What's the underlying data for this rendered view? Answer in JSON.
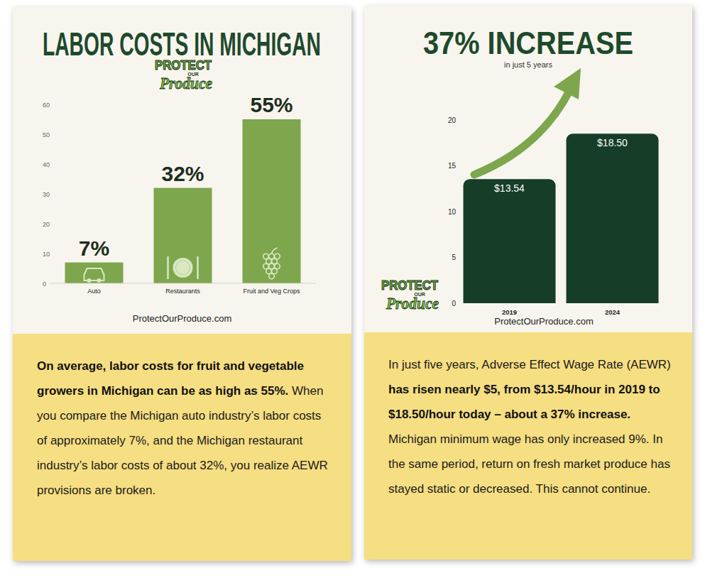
{
  "chart_data": [
    {
      "type": "bar",
      "title": "LABOR COSTS IN MICHIGAN",
      "logo": [
        "PROTECT",
        "OUR",
        "Produce"
      ],
      "categories": [
        "Auto",
        "Restaurants",
        "Fruit and Veg Crops"
      ],
      "values": [
        7,
        32,
        55
      ],
      "value_labels": [
        "7%",
        "32%",
        "55%"
      ],
      "color": "#7da64d",
      "ylim": [
        0,
        60
      ],
      "yticks": [
        0,
        10,
        20,
        30,
        40,
        50,
        60
      ],
      "grid": false,
      "data_labels": true,
      "source": "ProtectOurProduce.com",
      "annotations": [
        "On average, labor costs for fruit and vegetable growers in Michigan can be as high as 55%.",
        "When you compare the Michigan auto industry’s labor costs of approximately 7%, and the Michigan restaurant industry’s labor costs of about 32%, you realize AEWR provisions are broken."
      ]
    },
    {
      "type": "bar",
      "title": "37% INCREASE",
      "subtitle": "in just 5 years",
      "logo": [
        "PROTECT",
        "OUR",
        "Produce"
      ],
      "categories": [
        "2019",
        "2024"
      ],
      "values": [
        13.54,
        18.5
      ],
      "value_labels": [
        "$13.54",
        "$18.50"
      ],
      "color": "#163d27",
      "ylim": [
        0,
        20
      ],
      "yticks": [
        0,
        5,
        10,
        15,
        20
      ],
      "grid": false,
      "data_labels": true,
      "source": "ProtectOurProduce.com",
      "annotations": [
        "In just five years, Adverse Effect Wage Rate (AEWR)",
        "has risen nearly $5, from $13.54/hour in 2019 to $18.50/hour today – about a 37% increase.",
        "Michigan minimum wage has only increased 9%. In the same period, return on fresh market produce has stayed static or decreased. This cannot continue."
      ]
    }
  ]
}
